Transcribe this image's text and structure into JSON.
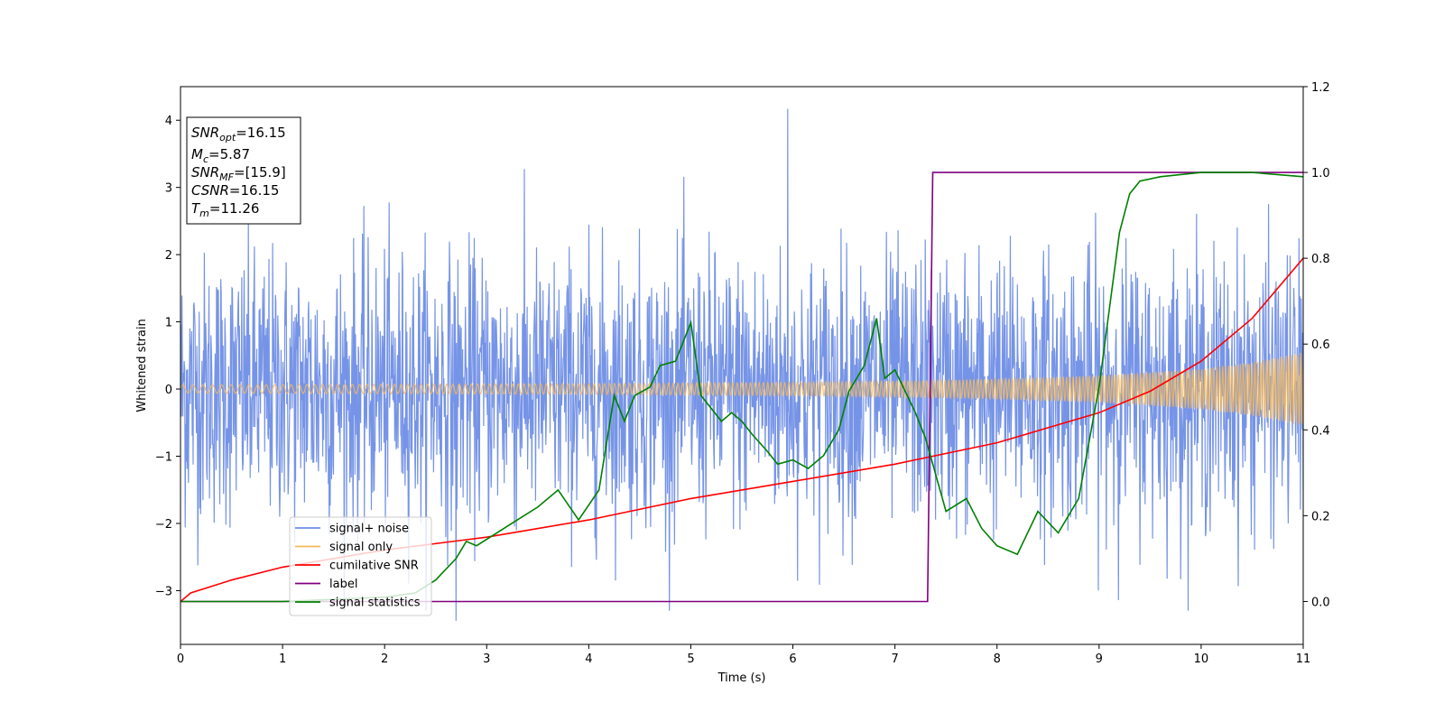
{
  "chart_data": {
    "type": "line",
    "xlabel": "Time (s)",
    "ylabel": "Whitened strain",
    "xlim": [
      0,
      11
    ],
    "ylim_left": [
      -3.8,
      4.5
    ],
    "ylim_right": [
      -0.1,
      1.2
    ],
    "x_ticks": [
      "0",
      "1",
      "2",
      "3",
      "4",
      "5",
      "6",
      "7",
      "8",
      "9",
      "10",
      "11"
    ],
    "y_ticks_left": [
      "−3",
      "−2",
      "−1",
      "0",
      "1",
      "2",
      "3",
      "4"
    ],
    "y_ticks_right": [
      "0.0",
      "0.2",
      "0.4",
      "0.6",
      "0.8",
      "1.0",
      "1.2"
    ],
    "annotation": [
      {
        "base": "SNR",
        "sub": "opt",
        "value": "=16.15"
      },
      {
        "base": "M",
        "sub": "c",
        "value": "=5.87"
      },
      {
        "base": "SNR",
        "sub": "MF",
        "value": "=[15.9]"
      },
      {
        "base": "CSNR",
        "sub": "",
        "value": "=16.15"
      },
      {
        "base": "T",
        "sub": "m",
        "value": "=11.26"
      }
    ],
    "legend": {
      "placement": "lower-left",
      "entries": [
        "signal+ noise",
        "signal only",
        "cumilative SNR",
        "label",
        "signal statistics"
      ]
    },
    "series": [
      {
        "name": "signal+ noise",
        "axis": "left",
        "color": "#6f8ee6",
        "noise": {
          "sigma": 1.0,
          "peak_max": 4.17,
          "peak_min": -3.45
        }
      },
      {
        "name": "signal only",
        "axis": "left",
        "color": "#f5b85a",
        "envelope": {
          "x": [
            0,
            2,
            4,
            6,
            7,
            8,
            9,
            10,
            10.5,
            11
          ],
          "amp": [
            0.06,
            0.07,
            0.08,
            0.1,
            0.12,
            0.15,
            0.2,
            0.3,
            0.4,
            0.55
          ]
        }
      },
      {
        "name": "cumilative SNR",
        "axis": "right",
        "color": "#ff0000",
        "x": [
          0,
          0.1,
          0.5,
          1,
          2,
          3,
          4,
          5,
          6,
          7,
          8,
          9,
          9.5,
          10,
          10.5,
          11
        ],
        "y": [
          0.0,
          0.02,
          0.05,
          0.08,
          0.12,
          0.15,
          0.19,
          0.24,
          0.28,
          0.32,
          0.37,
          0.44,
          0.49,
          0.56,
          0.66,
          0.8
        ]
      },
      {
        "name": "label",
        "axis": "right",
        "color": "#800080",
        "x": [
          0,
          7.32,
          7.37,
          11
        ],
        "y": [
          0,
          0,
          1,
          1
        ]
      },
      {
        "name": "signal statistics",
        "axis": "right",
        "color": "#008000",
        "x": [
          0,
          1,
          2,
          2.3,
          2.5,
          2.7,
          2.8,
          2.9,
          3.1,
          3.3,
          3.5,
          3.7,
          3.9,
          4.1,
          4.25,
          4.35,
          4.45,
          4.6,
          4.7,
          4.85,
          5.0,
          5.1,
          5.3,
          5.4,
          5.5,
          5.6,
          5.75,
          5.85,
          6.0,
          6.15,
          6.3,
          6.45,
          6.55,
          6.7,
          6.82,
          6.9,
          7.0,
          7.2,
          7.3,
          7.5,
          7.7,
          7.85,
          8.0,
          8.2,
          8.4,
          8.6,
          8.8,
          9.0,
          9.2,
          9.3,
          9.4,
          9.6,
          10.0,
          10.5,
          11
        ],
        "y": [
          0.0,
          0.0,
          0.01,
          0.02,
          0.05,
          0.1,
          0.14,
          0.13,
          0.16,
          0.19,
          0.22,
          0.26,
          0.19,
          0.26,
          0.48,
          0.42,
          0.48,
          0.5,
          0.55,
          0.56,
          0.65,
          0.48,
          0.42,
          0.44,
          0.42,
          0.39,
          0.35,
          0.32,
          0.33,
          0.31,
          0.34,
          0.4,
          0.49,
          0.55,
          0.66,
          0.52,
          0.54,
          0.44,
          0.38,
          0.21,
          0.24,
          0.17,
          0.13,
          0.11,
          0.21,
          0.16,
          0.24,
          0.5,
          0.86,
          0.95,
          0.98,
          0.99,
          1.0,
          1.0,
          0.99
        ]
      }
    ]
  }
}
